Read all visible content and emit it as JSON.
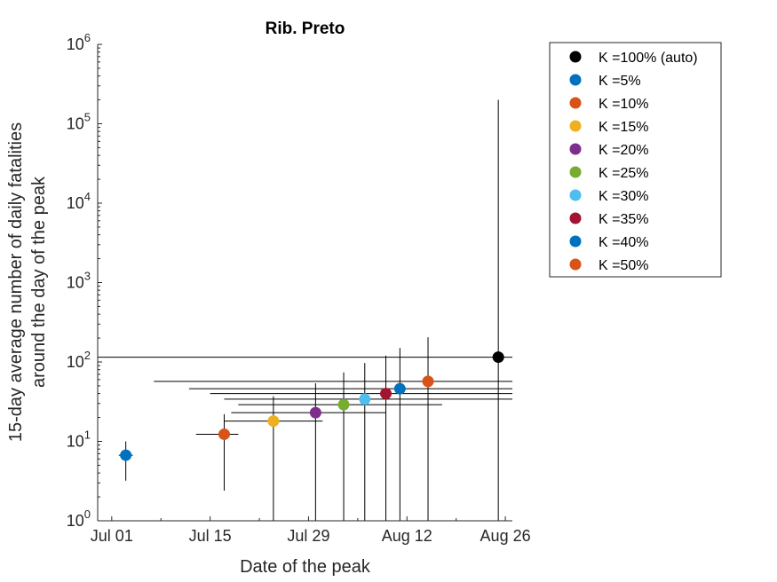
{
  "chart_data": {
    "type": "scatter",
    "title": "Rib. Preto",
    "xlabel": "Date of the peak",
    "ylabel": [
      "15-day average number of daily fatalities",
      "around the day of the peak"
    ],
    "yscale": "log",
    "ylim": [
      1,
      1000000
    ],
    "xlim": [
      "2020-06-29",
      "2020-08-27"
    ],
    "grid": false,
    "legend_position": "outside-right-top",
    "x_ticks": [
      {
        "date": "2020-07-01",
        "label": "Jul 01"
      },
      {
        "date": "2020-07-15",
        "label": "Jul 15"
      },
      {
        "date": "2020-07-29",
        "label": "Jul 29"
      },
      {
        "date": "2020-08-12",
        "label": "Aug 12"
      },
      {
        "date": "2020-08-26",
        "label": "Aug 26"
      }
    ],
    "y_ticks": [
      {
        "value": 1,
        "base": "10",
        "exp": "0"
      },
      {
        "value": 10,
        "base": "10",
        "exp": "1"
      },
      {
        "value": 100,
        "base": "10",
        "exp": "2"
      },
      {
        "value": 1000,
        "base": "10",
        "exp": "3"
      },
      {
        "value": 10000,
        "base": "10",
        "exp": "4"
      },
      {
        "value": 100000,
        "base": "10",
        "exp": "5"
      },
      {
        "value": 1000000,
        "base": "10",
        "exp": "6"
      }
    ],
    "series": [
      {
        "name": "K =100% (auto)",
        "color": "#000000",
        "date": "2020-08-25",
        "y": 115,
        "x_range": [
          "2020-06-29",
          "2020-08-27"
        ],
        "y_range": [
          1,
          200000
        ]
      },
      {
        "name": "K =5%",
        "color": "#0072BD",
        "date": "2020-07-03",
        "y": 6.7,
        "x_range": [
          "2020-07-02",
          "2020-07-04"
        ],
        "y_range": [
          3.2,
          10
        ]
      },
      {
        "name": "K =10%",
        "color": "#D95319",
        "date": "2020-07-17",
        "y": 12.3,
        "x_range": [
          "2020-07-13",
          "2020-07-19"
        ],
        "y_range": [
          2.4,
          22
        ]
      },
      {
        "name": "K =15%",
        "color": "#EDB120",
        "date": "2020-07-24",
        "y": 18,
        "x_range": [
          "2020-07-17",
          "2020-07-31"
        ],
        "y_range": [
          1,
          37
        ]
      },
      {
        "name": "K =20%",
        "color": "#7E2F8E",
        "date": "2020-07-30",
        "y": 23,
        "x_range": [
          "2020-07-18",
          "2020-08-09"
        ],
        "y_range": [
          1,
          54
        ]
      },
      {
        "name": "K =25%",
        "color": "#77AC30",
        "date": "2020-08-03",
        "y": 29,
        "x_range": [
          "2020-07-19",
          "2020-08-17"
        ],
        "y_range": [
          1,
          74
        ]
      },
      {
        "name": "K =30%",
        "color": "#4DBEEE",
        "date": "2020-08-06",
        "y": 34,
        "x_range": [
          "2020-07-17",
          "2020-08-27"
        ],
        "y_range": [
          1,
          97
        ]
      },
      {
        "name": "K =35%",
        "color": "#A2142F",
        "date": "2020-08-09",
        "y": 40,
        "x_range": [
          "2020-07-15",
          "2020-08-27"
        ],
        "y_range": [
          1,
          120
        ]
      },
      {
        "name": "K =40%",
        "color": "#0072BD",
        "date": "2020-08-11",
        "y": 46,
        "x_range": [
          "2020-07-12",
          "2020-08-27"
        ],
        "y_range": [
          1,
          150
        ]
      },
      {
        "name": "K =50%",
        "color": "#D95319",
        "date": "2020-08-15",
        "y": 57,
        "x_range": [
          "2020-07-07",
          "2020-08-27"
        ],
        "y_range": [
          1,
          205
        ]
      }
    ]
  }
}
